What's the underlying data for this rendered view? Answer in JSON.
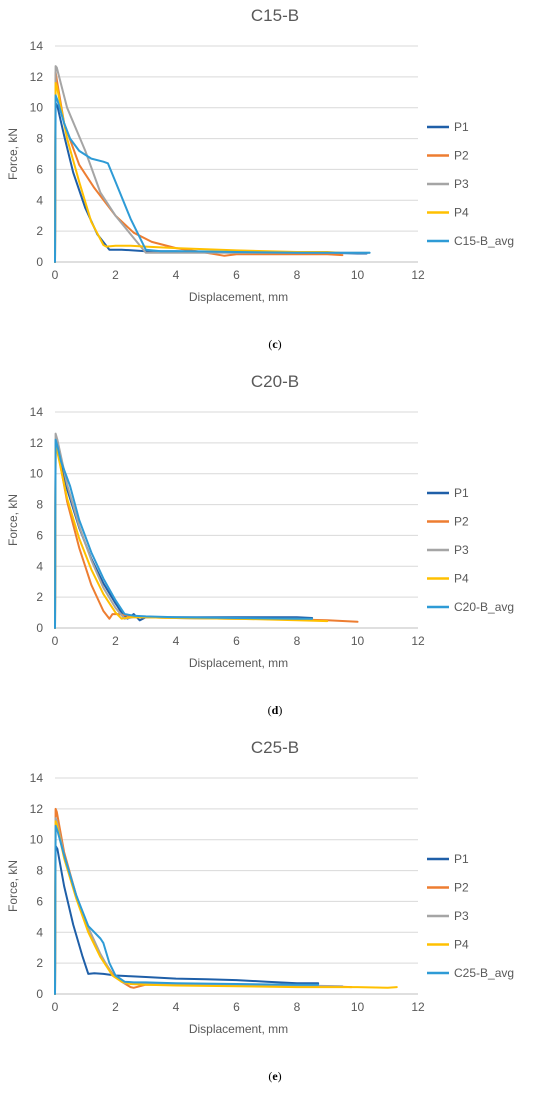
{
  "chart_data": [
    {
      "type": "line",
      "title": "C15-B",
      "xlabel": "Displacement, mm",
      "ylabel": "Force, kN",
      "xlim": [
        0,
        12
      ],
      "ylim": [
        0,
        14
      ],
      "x_ticks": [
        "0",
        "2",
        "4",
        "6",
        "8",
        "10",
        "12"
      ],
      "y_ticks": [
        "0",
        "2",
        "4",
        "6",
        "8",
        "10",
        "12",
        "14"
      ],
      "grid": "horizontal",
      "legend_position": "right",
      "caption_letter": "c",
      "series": [
        {
          "name": "P1",
          "color": "#1f5fa8",
          "x": [
            0,
            0.02,
            0.08,
            0.3,
            0.6,
            1.0,
            1.4,
            1.8,
            2.2,
            3,
            4,
            5,
            6,
            7,
            8,
            9,
            10,
            10.3
          ],
          "y": [
            0,
            10.3,
            10.1,
            8.2,
            5.8,
            3.5,
            1.8,
            0.8,
            0.8,
            0.7,
            0.7,
            0.65,
            0.6,
            0.6,
            0.6,
            0.6,
            0.55,
            0.55
          ]
        },
        {
          "name": "P2",
          "color": "#ed7d31",
          "x": [
            0,
            0.02,
            0.06,
            0.3,
            0.8,
            1.3,
            2,
            2.6,
            3.2,
            4,
            5,
            5.6,
            6,
            7,
            8,
            9,
            9.5
          ],
          "y": [
            0,
            12.3,
            11.8,
            9,
            6.3,
            4.8,
            3,
            1.9,
            1.3,
            0.9,
            0.6,
            0.4,
            0.5,
            0.5,
            0.5,
            0.5,
            0.45
          ]
        },
        {
          "name": "P3",
          "color": "#a5a5a5",
          "x": [
            0,
            0.02,
            0.06,
            0.4,
            1,
            1.5,
            2,
            2.5,
            3,
            3.5,
            4,
            6,
            8,
            10,
            10.4
          ],
          "y": [
            0,
            12.7,
            12.6,
            10,
            7.2,
            4.5,
            3,
            1.8,
            0.6,
            0.6,
            0.6,
            0.6,
            0.6,
            0.6,
            0.6
          ]
        },
        {
          "name": "P4",
          "color": "#ffc000",
          "x": [
            0,
            0.02,
            0.06,
            0.4,
            0.8,
            1.2,
            1.6,
            1.7,
            2,
            2.5,
            3,
            4,
            6,
            8,
            9,
            9.4
          ],
          "y": [
            0,
            11.6,
            11.4,
            8,
            5.2,
            2.6,
            1.1,
            1.0,
            1.05,
            1.05,
            1.0,
            0.9,
            0.75,
            0.65,
            0.65,
            0.6
          ]
        },
        {
          "name": "C15-B_avg",
          "color": "#2e9bd6",
          "x": [
            0,
            0.02,
            0.08,
            0.3,
            0.5,
            0.8,
            1.2,
            1.6,
            1.75,
            2,
            2.5,
            3,
            3.5,
            4,
            4.5,
            6,
            8,
            10,
            10.4
          ],
          "y": [
            0,
            10.8,
            10.5,
            9,
            8,
            7.2,
            6.7,
            6.5,
            6.4,
            5.2,
            2.8,
            0.8,
            0.7,
            0.7,
            0.7,
            0.65,
            0.6,
            0.6,
            0.6
          ]
        }
      ]
    },
    {
      "type": "line",
      "title": "C20-B",
      "xlabel": "Displacement, mm",
      "ylabel": "Force, kN",
      "xlim": [
        0,
        12
      ],
      "ylim": [
        0,
        14
      ],
      "x_ticks": [
        "0",
        "2",
        "4",
        "6",
        "8",
        "10",
        "12"
      ],
      "y_ticks": [
        "0",
        "2",
        "4",
        "6",
        "8",
        "10",
        "12",
        "14"
      ],
      "grid": "horizontal",
      "legend_position": "right",
      "caption_letter": "d",
      "series": [
        {
          "name": "P1",
          "color": "#1f5fa8",
          "x": [
            0,
            0.02,
            0.08,
            0.4,
            0.8,
            1.2,
            1.6,
            2,
            2.2,
            2.4,
            2.6,
            2.8,
            3,
            4,
            6,
            8,
            8.5
          ],
          "y": [
            0,
            11.8,
            11.5,
            9,
            6.5,
            4.5,
            2.9,
            1.6,
            1.0,
            0.6,
            0.9,
            0.5,
            0.7,
            0.7,
            0.7,
            0.7,
            0.65
          ]
        },
        {
          "name": "P2",
          "color": "#ed7d31",
          "x": [
            0,
            0.02,
            0.08,
            0.4,
            0.8,
            1.2,
            1.6,
            1.8,
            1.9,
            2.1,
            2.4,
            3,
            4,
            6,
            8,
            9,
            10
          ],
          "y": [
            0,
            12,
            11.6,
            8.2,
            5.2,
            2.8,
            1.1,
            0.6,
            0.9,
            0.9,
            0.8,
            0.7,
            0.65,
            0.6,
            0.55,
            0.5,
            0.4
          ]
        },
        {
          "name": "P3",
          "color": "#a5a5a5",
          "x": [
            0,
            0.02,
            0.08,
            0.4,
            0.8,
            1.2,
            1.6,
            2,
            2.3,
            2.6,
            3,
            4,
            6,
            8,
            8.5
          ],
          "y": [
            0,
            12.6,
            12.2,
            9.3,
            6.6,
            4.4,
            2.6,
            1.3,
            0.6,
            0.7,
            0.7,
            0.65,
            0.6,
            0.6,
            0.55
          ]
        },
        {
          "name": "P4",
          "color": "#ffc000",
          "x": [
            0,
            0.02,
            0.08,
            0.4,
            0.8,
            1.2,
            1.6,
            2,
            2.2,
            2.5,
            3,
            4,
            6,
            8,
            9
          ],
          "y": [
            0,
            11.8,
            11.4,
            8.4,
            5.8,
            3.8,
            2.2,
            1.0,
            0.6,
            0.7,
            0.7,
            0.65,
            0.6,
            0.5,
            0.45
          ]
        },
        {
          "name": "C20-B_avg",
          "color": "#2e9bd6",
          "x": [
            0,
            0.02,
            0.08,
            0.2,
            0.5,
            0.8,
            1.2,
            1.6,
            2,
            2.3,
            2.6,
            3,
            4,
            6,
            8,
            8.5
          ],
          "y": [
            0,
            12.2,
            11.8,
            10.8,
            9.2,
            7,
            4.9,
            3.2,
            1.8,
            0.9,
            0.8,
            0.75,
            0.7,
            0.65,
            0.6,
            0.6
          ]
        }
      ]
    },
    {
      "type": "line",
      "title": "C25-B",
      "xlabel": "Displacement, mm",
      "ylabel": "Force, kN",
      "xlim": [
        0,
        12
      ],
      "ylim": [
        0,
        14
      ],
      "x_ticks": [
        "0",
        "2",
        "4",
        "6",
        "8",
        "10",
        "12"
      ],
      "y_ticks": [
        "0",
        "2",
        "4",
        "6",
        "8",
        "10",
        "12",
        "14"
      ],
      "grid": "horizontal",
      "legend_position": "right",
      "caption_letter": "e",
      "series": [
        {
          "name": "P1",
          "color": "#1f5fa8",
          "x": [
            0,
            0.02,
            0.08,
            0.3,
            0.6,
            0.9,
            1.1,
            1.3,
            1.6,
            2,
            2.5,
            3,
            4,
            5,
            6,
            7,
            8,
            8.7
          ],
          "y": [
            0,
            9.6,
            9.4,
            7,
            4.5,
            2.5,
            1.3,
            1.35,
            1.3,
            1.2,
            1.15,
            1.1,
            1.0,
            0.95,
            0.9,
            0.8,
            0.7,
            0.7
          ]
        },
        {
          "name": "P2",
          "color": "#ed7d31",
          "x": [
            0,
            0.02,
            0.06,
            0.3,
            0.7,
            1.1,
            1.5,
            1.9,
            2.2,
            2.5,
            2.6,
            3,
            4,
            6,
            8,
            9,
            9.8
          ],
          "y": [
            0,
            12,
            11.8,
            9.2,
            6.4,
            4.2,
            2.5,
            1.3,
            0.8,
            0.45,
            0.4,
            0.6,
            0.6,
            0.55,
            0.5,
            0.5,
            0.45
          ]
        },
        {
          "name": "P3",
          "color": "#a5a5a5",
          "x": [
            0,
            0.02,
            0.06,
            0.3,
            0.7,
            1.1,
            1.5,
            1.9,
            2.3,
            2.6,
            3,
            4,
            6,
            8,
            9.5
          ],
          "y": [
            0,
            11.4,
            11.2,
            9,
            6.4,
            4.3,
            2.6,
            1.2,
            0.7,
            0.7,
            0.7,
            0.65,
            0.6,
            0.55,
            0.5
          ]
        },
        {
          "name": "P4",
          "color": "#ffc000",
          "x": [
            0,
            0.02,
            0.06,
            0.3,
            0.7,
            1.1,
            1.5,
            1.9,
            2.2,
            2.5,
            3,
            4,
            6,
            8,
            10,
            11,
            11.3
          ],
          "y": [
            0,
            11.2,
            11,
            8.8,
            6.2,
            4,
            2.4,
            1.2,
            0.8,
            0.65,
            0.6,
            0.55,
            0.5,
            0.45,
            0.45,
            0.4,
            0.45
          ]
        },
        {
          "name": "C25-B_avg",
          "color": "#2e9bd6",
          "x": [
            0,
            0.02,
            0.08,
            0.3,
            0.7,
            1.1,
            1.5,
            1.6,
            1.8,
            2,
            2.3,
            2.6,
            3,
            4,
            6,
            8,
            8.7
          ],
          "y": [
            0,
            10.9,
            10.6,
            9,
            6.4,
            4.4,
            3.6,
            3.3,
            2,
            1.2,
            0.8,
            0.75,
            0.75,
            0.7,
            0.65,
            0.6,
            0.6
          ]
        }
      ]
    }
  ]
}
